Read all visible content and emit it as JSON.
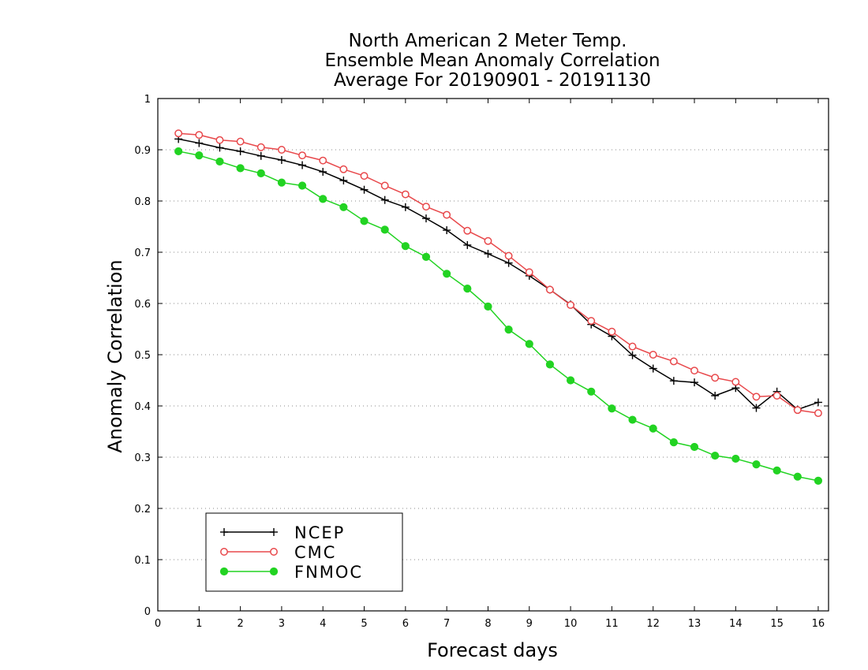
{
  "chart_data": {
    "type": "line",
    "title": [
      "North American 2 Meter Temp.",
      "Ensemble Mean Anomaly Correlation",
      "Average For 20190901 - 20191130"
    ],
    "xlabel": "Forecast days",
    "ylabel": "Anomaly Correlation",
    "xlim": [
      0,
      16.25
    ],
    "ylim": [
      0,
      1
    ],
    "xticks": [
      "0",
      "1",
      "2",
      "3",
      "4",
      "5",
      "6",
      "7",
      "8",
      "9",
      "10",
      "11",
      "12",
      "13",
      "14",
      "15",
      "16"
    ],
    "yticks": [
      "0",
      "0.1",
      "0.2",
      "0.3",
      "0.4",
      "0.5",
      "0.6",
      "0.7",
      "0.8",
      "0.9",
      "1"
    ],
    "grid": "horizontal dotted",
    "legend_position": "bottom-left",
    "x": [
      0.5,
      1.0,
      1.5,
      2.0,
      2.5,
      3.0,
      3.5,
      4.0,
      4.5,
      5.0,
      5.5,
      6.0,
      6.5,
      7.0,
      7.5,
      8.0,
      8.5,
      9.0,
      9.5,
      10.0,
      10.5,
      11.0,
      11.5,
      12.0,
      12.5,
      13.0,
      13.5,
      14.0,
      14.5,
      15.0,
      15.5,
      16.0
    ],
    "series": [
      {
        "name": "NCEP",
        "color": "#000000",
        "marker": "plus",
        "values": [
          0.921,
          0.913,
          0.904,
          0.897,
          0.888,
          0.88,
          0.87,
          0.857,
          0.84,
          0.822,
          0.802,
          0.788,
          0.766,
          0.743,
          0.714,
          0.697,
          0.679,
          0.654,
          0.627,
          0.598,
          0.559,
          0.536,
          0.499,
          0.473,
          0.449,
          0.446,
          0.42,
          0.435,
          0.396,
          0.428,
          0.393,
          0.407
        ]
      },
      {
        "name": "CMC",
        "color": "#e8484b",
        "marker": "open-circle",
        "values": [
          0.932,
          0.929,
          0.919,
          0.916,
          0.905,
          0.9,
          0.889,
          0.879,
          0.862,
          0.849,
          0.83,
          0.813,
          0.789,
          0.773,
          0.742,
          0.722,
          0.693,
          0.661,
          0.627,
          0.597,
          0.566,
          0.545,
          0.516,
          0.5,
          0.487,
          0.469,
          0.455,
          0.447,
          0.418,
          0.42,
          0.392,
          0.386
        ]
      },
      {
        "name": "FNMOC",
        "color": "#22d322",
        "marker": "filled-circle",
        "values": [
          0.897,
          0.889,
          0.877,
          0.864,
          0.854,
          0.836,
          0.83,
          0.804,
          0.788,
          0.761,
          0.744,
          0.712,
          0.691,
          0.658,
          0.629,
          0.594,
          0.549,
          0.521,
          0.481,
          0.45,
          0.428,
          0.395,
          0.373,
          0.356,
          0.329,
          0.32,
          0.303,
          0.297,
          0.286,
          0.274,
          0.262,
          0.254
        ]
      }
    ]
  }
}
